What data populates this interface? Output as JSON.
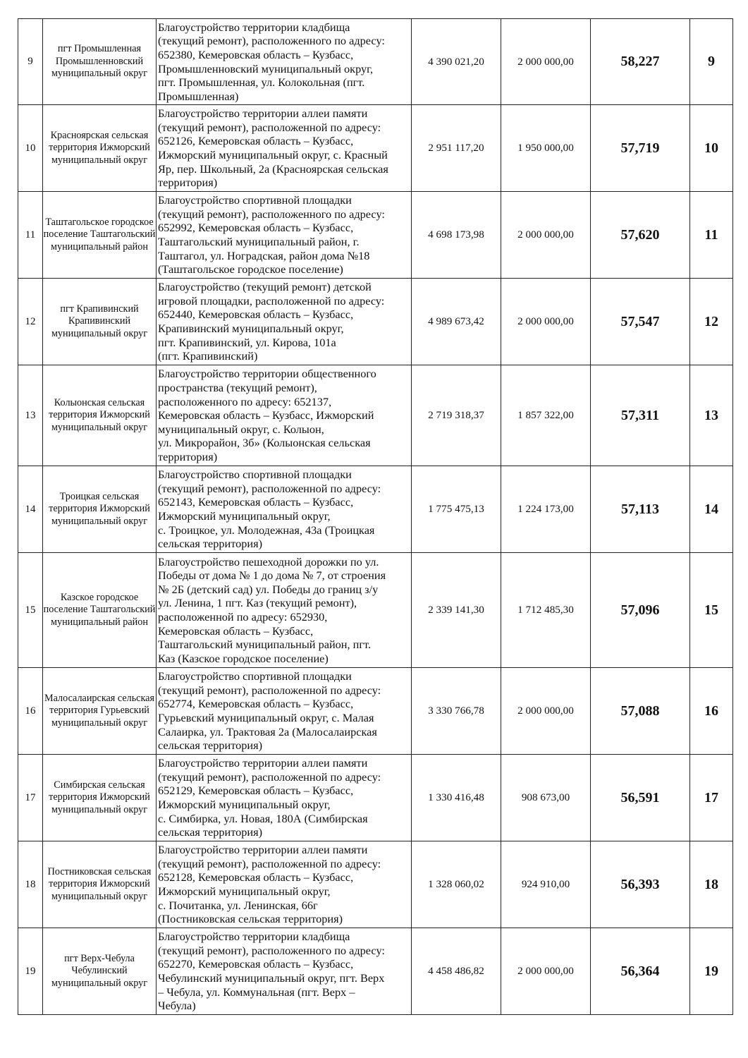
{
  "rows": [
    {
      "num": "9",
      "name": "пгт  Промышленная Промышленновский муниципальный округ",
      "description": "Благоустройство территории кладбища\n(текущий ремонт), расположенного по адресу:\n652380, Кемеровская область – Кузбасс,\nПромышленновский муниципальный округ,\nпгт. Промышленная, ул. Колокольная (пгт.\nПромышленная)",
      "cost": "4 390 021,20",
      "subsidy": "2 000 000,00",
      "score": "58,227",
      "rank": "9"
    },
    {
      "num": "10",
      "name": "Красноярская сельская территория Ижморский муниципальный округ",
      "description": "Благоустройство территории аллеи памяти\n(текущий ремонт), расположенной по адресу:\n652126, Кемеровская область – Кузбасс,\nИжморский муниципальный округ, с. Красный\nЯр, пер. Школьный, 2а (Красноярская сельская\nтерритория)",
      "cost": "2 951 117,20",
      "subsidy": "1 950 000,00",
      "score": "57,719",
      "rank": "10"
    },
    {
      "num": "11",
      "name": "Таштагольское городское поселение Таштагольский муниципальный район",
      "description": "Благоустройство спортивной площадки\n(текущий ремонт), расположенного по адресу:\n652992, Кемеровская область – Кузбасс,\nТаштагольский муниципальный район, г.\nТаштагол, ул. Ноградская, район дома №18\n(Таштагольское городское поселение)",
      "cost": "4 698 173,98",
      "subsidy": "2 000 000,00",
      "score": "57,620",
      "rank": "11"
    },
    {
      "num": "12",
      "name": "пгт Крапивинский Крапивинский муниципальный  округ",
      "description": "Благоустройство (текущий ремонт) детской\nигровой площадки, расположенной по адресу:\n652440, Кемеровская область – Кузбасс,\nКрапивинский муниципальный округ,\nпгт. Крапивинский, ул. Кирова, 101а\n(пгт. Крапивинский)",
      "cost": "4 989 673,42",
      "subsidy": "2 000 000,00",
      "score": "57,547",
      "rank": "12"
    },
    {
      "num": "13",
      "name": "Колыонская сельская территория Ижморский муниципальный округ",
      "description": "Благоустройство территории общественного\nпространства (текущий ремонт),\nрасположенного по адресу: 652137,\nКемеровская область – Кузбасс, Ижморский\nмуниципальный округ, с. Колыон,\nул. Микрорайон, 3б» (Колыонская сельская\nтерритория)",
      "cost": "2 719 318,37",
      "subsidy": "1 857 322,00",
      "score": "57,311",
      "rank": "13"
    },
    {
      "num": "14",
      "name": "Троицкая сельская территория Ижморский муниципальный  округ",
      "description": "Благоустройство спортивной площадки\n(текущий ремонт), расположенной по адресу:\n652143, Кемеровская область – Кузбасс,\nИжморский муниципальный округ,\nс. Троицкое, ул. Молодежная, 43а (Троицкая\nсельская территория)",
      "cost": "1 775 475,13",
      "subsidy": "1 224 173,00",
      "score": "57,113",
      "rank": "14"
    },
    {
      "num": "15",
      "name": "Казское городское поселение Таштагольский муниципальный район",
      "description": "Благоустройство пешеходной дорожки по ул.\nПобеды от дома № 1 до дома № 7, от строения\n№ 2Б (детский сад) ул. Победы до границ з/у\nул. Ленина, 1 пгт. Каз (текущий ремонт),\nрасположенной по адресу: 652930,\nКемеровская область – Кузбасс,\nТаштагольский муниципальный район, пгт.\nКаз (Казское городское поселение)",
      "cost": "2 339 141,30",
      "subsidy": "1 712 485,30",
      "score": "57,096",
      "rank": "15"
    },
    {
      "num": "16",
      "name": "Малосалаирская сельская территория Гурьевский муниципальный округ",
      "description": "Благоустройство спортивной площадки\n(текущий ремонт), расположенной по адресу:\n652774, Кемеровская область – Кузбасс,\nГурьевский муниципальный округ, с. Малая\nСалаирка, ул. Трактовая 2а (Малосалаирская\nсельская территория)",
      "cost": "3 330 766,78",
      "subsidy": "2 000 000,00",
      "score": "57,088",
      "rank": "16"
    },
    {
      "num": "17",
      "name": "Симбирская сельская территория Ижморский муниципальный  округ",
      "description": "Благоустройство территории аллеи памяти\n(текущий ремонт), расположенной по адресу:\n652129, Кемеровская область – Кузбасс,\nИжморский муниципальный округ,\nс. Симбирка, ул. Новая, 180А (Симбирская\nсельская территория)",
      "cost": "1 330 416,48",
      "subsidy": "908 673,00",
      "score": "56,591",
      "rank": "17"
    },
    {
      "num": "18",
      "name": "Постниковская сельская территория Ижморский муниципальный  округ",
      "description": "Благоустройство территории аллеи памяти\n(текущий ремонт), расположенной по адресу:\n652128, Кемеровская область – Кузбасс,\nИжморский муниципальный округ,\nс. Почитанка, ул. Ленинская, 66г\n(Постниковская сельская территория)",
      "cost": "1 328 060,02",
      "subsidy": "924 910,00",
      "score": "56,393",
      "rank": "18"
    },
    {
      "num": "19",
      "name": "пгт Верх-Чебула Чебулинский муниципальный округ",
      "description": "Благоустройство территории кладбища\n(текущий ремонт), расположенного по адресу:\n652270, Кемеровская область – Кузбасс,\nЧебулинский муниципальный округ, пгт. Верх\n– Чебула, ул. Коммунальная (пгт. Верх –\nЧебула)",
      "cost": "4 458 486,82",
      "subsidy": "2 000 000,00",
      "score": "56,364",
      "rank": "19"
    }
  ]
}
